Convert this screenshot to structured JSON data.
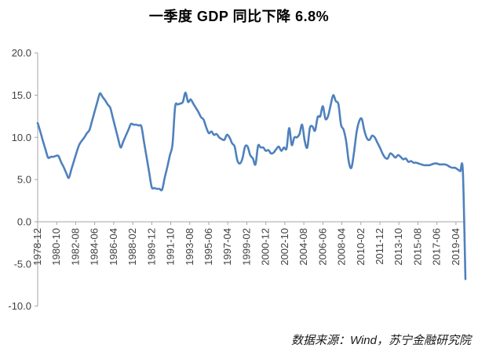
{
  "chart": {
    "title": "一季度 GDP 同比下降 6.8%",
    "source": "数据来源：Wind，苏宁金融研究院"
  },
  "chart_data": {
    "type": "line",
    "title": "一季度 GDP 同比下降 6.8%",
    "source": "数据来源：Wind，苏宁金融研究院",
    "grid": false,
    "legend": false,
    "line_color": "#4F81BD",
    "axis_color": "#A6A6A6",
    "label_color": "#404040",
    "ylim": [
      -10,
      20
    ],
    "y_ticks": [
      20.0,
      15.0,
      10.0,
      5.0,
      0.0,
      -5.0,
      -10.0
    ],
    "y_tick_labels": [
      "20.0",
      "15.0",
      "10.0",
      "5.0",
      "0.0",
      "-5.0",
      "-10.0"
    ],
    "x_tick_labels": [
      "1978-12",
      "1980-10",
      "1982-08",
      "1984-06",
      "1986-04",
      "1988-02",
      "1989-12",
      "1991-10",
      "1993-08",
      "1995-06",
      "1997-04",
      "1999-02",
      "2000-12",
      "2002-10",
      "2004-08",
      "2006-06",
      "2008-04",
      "2010-02",
      "2011-12",
      "2013-10",
      "2015-08",
      "2017-06",
      "2019-04"
    ],
    "x_start": "1978-12",
    "x_end": "2020-03",
    "frequency": "quarterly",
    "x_label_interval_months": 22,
    "x_total_span_months": 495,
    "final_value": -6.8,
    "values": [
      11.7,
      10.7,
      9.6,
      8.6,
      7.6,
      7.7,
      7.7,
      7.8,
      7.8,
      7.1,
      6.5,
      5.8,
      5.2,
      6.2,
      7.2,
      8.2,
      9.1,
      9.6,
      10.0,
      10.5,
      10.9,
      12.0,
      13.1,
      14.2,
      15.2,
      14.8,
      14.4,
      13.9,
      13.5,
      12.3,
      11.1,
      9.9,
      8.8,
      9.5,
      10.2,
      10.9,
      11.6,
      11.5,
      11.5,
      11.4,
      11.3,
      9.5,
      7.7,
      5.9,
      4.1,
      4.0,
      3.9,
      3.9,
      3.8,
      5.2,
      6.5,
      7.9,
      9.2,
      13.6,
      13.9,
      14.0,
      14.2,
      15.3,
      14.2,
      14.5,
      14.0,
      13.5,
      13.0,
      12.4,
      12.1,
      11.2,
      10.5,
      10.7,
      10.3,
      10.4,
      10.0,
      9.8,
      9.7,
      10.3,
      10.0,
      9.3,
      8.9,
      7.3,
      6.9,
      7.5,
      8.9,
      8.9,
      7.9,
      7.5,
      6.8,
      9.0,
      8.8,
      8.8,
      8.4,
      8.5,
      8.1,
      8.2,
      8.6,
      8.9,
      8.4,
      8.8,
      8.7,
      11.1,
      9.1,
      10.0,
      10.0,
      10.4,
      11.5,
      9.6,
      8.8,
      11.1,
      11.3,
      10.8,
      12.4,
      12.5,
      13.7,
      12.2,
      12.5,
      13.8,
      15.0,
      14.3,
      13.9,
      11.5,
      10.9,
      9.5,
      7.1,
      6.4,
      8.2,
      10.6,
      11.9,
      12.2,
      10.8,
      9.9,
      9.7,
      10.2,
      10.0,
      9.4,
      8.8,
      8.1,
      7.6,
      7.5,
      8.1,
      7.9,
      7.6,
      7.9,
      7.7,
      7.4,
      7.5,
      7.1,
      7.2,
      7.0,
      7.0,
      6.9,
      6.8,
      6.7,
      6.7,
      6.7,
      6.8,
      6.9,
      6.9,
      6.8,
      6.8,
      6.8,
      6.7,
      6.5,
      6.4,
      6.4,
      6.2,
      6.0,
      6.0,
      -6.8
    ]
  }
}
